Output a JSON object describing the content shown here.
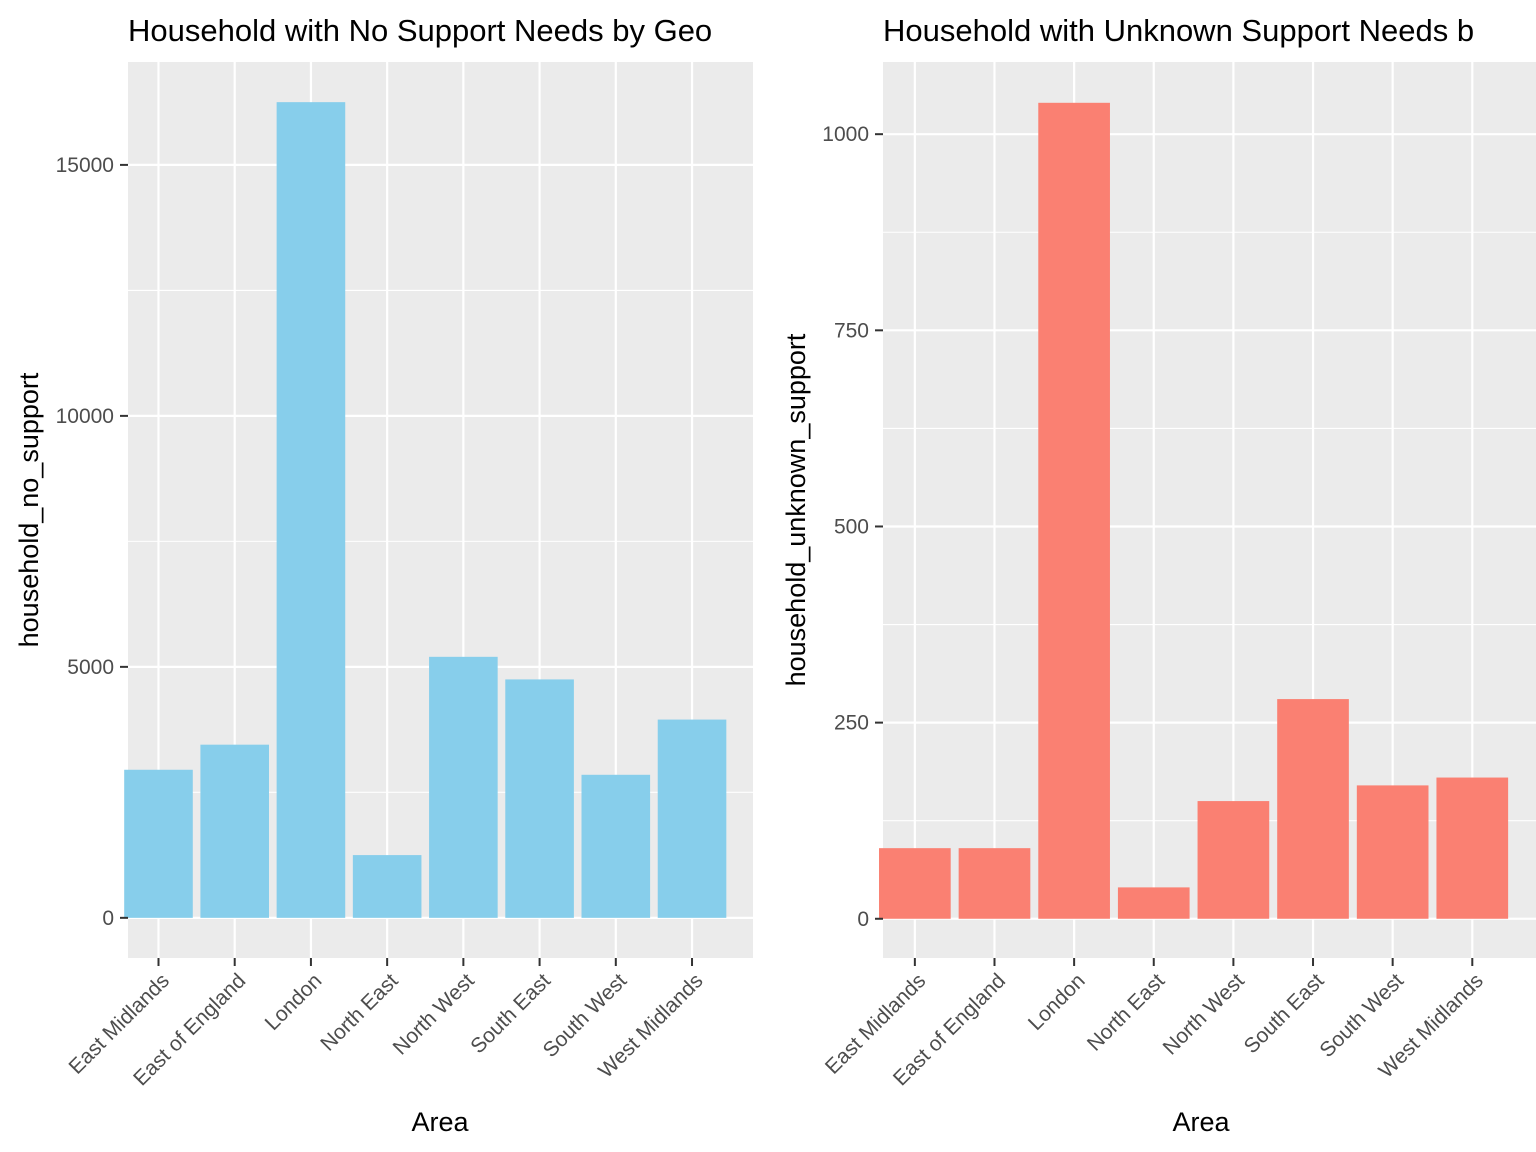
{
  "chart_data": [
    {
      "type": "bar",
      "title": "Household with No Support Needs by Geo",
      "xlabel": "Area",
      "ylabel": "household_no_support",
      "categories": [
        "East Midlands",
        "East of England",
        "London",
        "North East",
        "North West",
        "South East",
        "South West",
        "West Midlands"
      ],
      "values": [
        2950,
        3450,
        16250,
        1250,
        5200,
        4750,
        2850,
        3950
      ],
      "yticks": [
        0,
        5000,
        10000,
        15000
      ],
      "ytick_labels": [
        "0",
        "5000",
        "10000",
        "15000"
      ],
      "ylim": [
        -800,
        17050
      ],
      "bar_color": "#87CEEB",
      "grid": true,
      "legend": "none"
    },
    {
      "type": "bar",
      "title": "Household with Unknown Support Needs b",
      "xlabel": "Area",
      "ylabel": "household_unknown_support",
      "categories": [
        "East Midlands",
        "East of England",
        "London",
        "North East",
        "North West",
        "South East",
        "South West",
        "West Midlands"
      ],
      "values": [
        90,
        90,
        1040,
        40,
        150,
        280,
        170,
        180
      ],
      "yticks": [
        0,
        250,
        500,
        750,
        1000
      ],
      "ytick_labels": [
        "0",
        "250",
        "500",
        "750",
        "1000"
      ],
      "ylim": [
        -50,
        1092
      ],
      "bar_color": "#FA8072",
      "grid": true,
      "legend": "none"
    }
  ]
}
